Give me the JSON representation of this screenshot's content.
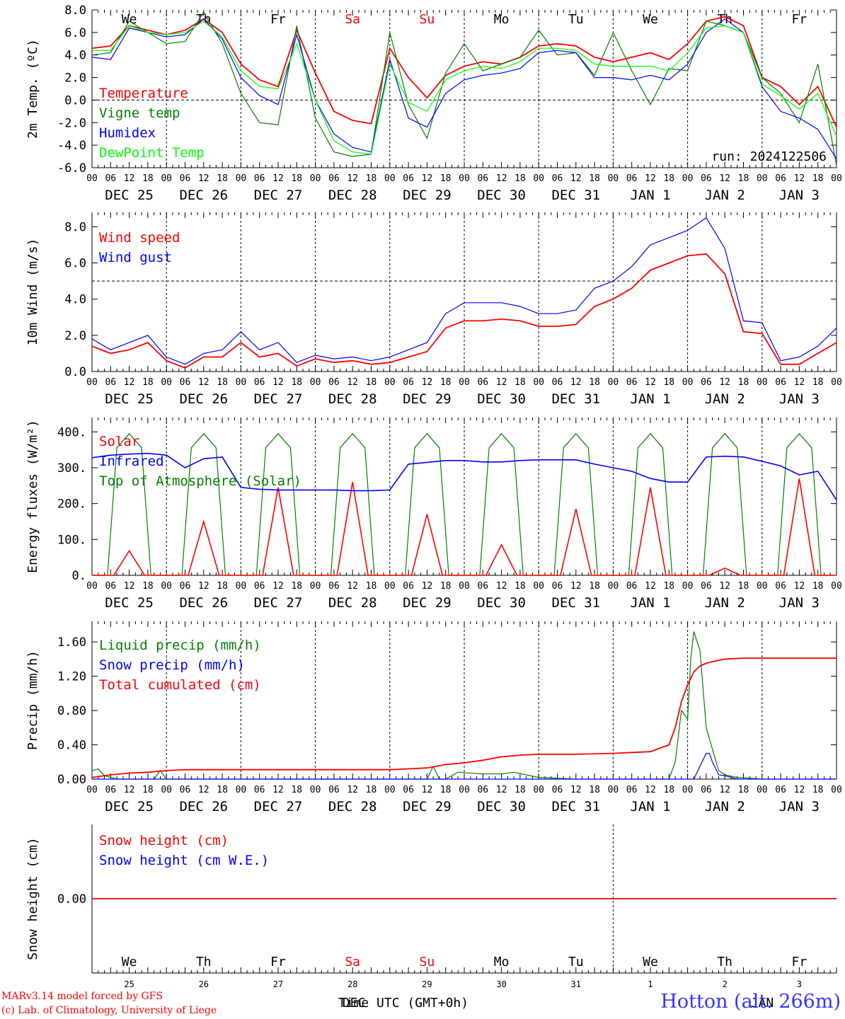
{
  "footer": {
    "model_credit": "MARv3.14 model forced by GFS",
    "lab_credit": "(c) Lab. of Climatology, University of Liege",
    "station": "Hotton (alt. 266m)",
    "x_title": "Time UTC (GMT+0h)",
    "x_title_overlay": "DEC",
    "x_title_overlay2": "JAN"
  },
  "colors": {
    "red": "#ff0000",
    "green": "#008000",
    "blue": "#0000ff",
    "lightgreen": "#00ff00",
    "axis": "#000000"
  },
  "day_abbrev": [
    "We",
    "Th",
    "Fr",
    "Sa",
    "Su",
    "Mo",
    "Tu",
    "We",
    "Th",
    "Fr"
  ],
  "day_colors": [
    "#000000",
    "#000000",
    "#000000",
    "#ff0000",
    "#ff0000",
    "#000000",
    "#000000",
    "#000000",
    "#000000",
    "#000000"
  ],
  "date_labels": [
    "DEC 25",
    "DEC 26",
    "DEC 27",
    "DEC 28",
    "DEC 29",
    "DEC 30",
    "DEC 31",
    "JAN  1",
    "JAN  2",
    "JAN  3"
  ],
  "hour_ticks": [
    "00",
    "06",
    "12",
    "18"
  ],
  "hour_end": "00",
  "day_numbers": [
    "25",
    "26",
    "27",
    "28",
    "29",
    "30",
    "31",
    "1",
    "2",
    "3"
  ],
  "chart_data": [
    {
      "type": "line",
      "ylabel": "2m Temp. (ºC)",
      "ylim": [
        -6,
        8
      ],
      "yticks": [
        "-6.0",
        "-4.0",
        "-2.0",
        "0.0",
        "2.0",
        "4.0",
        "6.0",
        "8.0"
      ],
      "ytick_values": [
        -6,
        -4,
        -2,
        0,
        2,
        4,
        6,
        8
      ],
      "ref_line": 0,
      "annotation": "run: 2024122506",
      "x_unit": "hours since DEC 25 00 UTC",
      "series": [
        {
          "name": "Temperature",
          "color": "#ff0000",
          "x": [
            0,
            6,
            12,
            18,
            24,
            30,
            36,
            42,
            48,
            54,
            60,
            66,
            72,
            78,
            84,
            90,
            96,
            102,
            108,
            114,
            120,
            126,
            132,
            138,
            144,
            150,
            156,
            162,
            168,
            174,
            180,
            186,
            192,
            198,
            204,
            210,
            216,
            222,
            228,
            234,
            240
          ],
          "y": [
            4.6,
            4.8,
            6.6,
            6.2,
            5.8,
            6.2,
            7.2,
            6.0,
            3.2,
            1.8,
            1.2,
            6.2,
            2.4,
            -1.0,
            -1.8,
            -2.1,
            4.6,
            2.0,
            0.2,
            2.2,
            3.0,
            3.4,
            3.2,
            3.8,
            4.8,
            5.0,
            4.8,
            3.8,
            3.4,
            3.8,
            4.2,
            3.6,
            5.0,
            7.0,
            7.4,
            6.6,
            2.0,
            1.2,
            -0.4,
            1.2,
            -2.4
          ]
        },
        {
          "name": "Vigne temp",
          "color": "#008000",
          "x": [
            0,
            6,
            12,
            18,
            24,
            30,
            36,
            42,
            48,
            54,
            60,
            66,
            72,
            78,
            84,
            90,
            96,
            102,
            108,
            114,
            120,
            126,
            132,
            138,
            144,
            150,
            156,
            162,
            168,
            174,
            180,
            186,
            192,
            198,
            204,
            210,
            216,
            222,
            228,
            234,
            240
          ],
          "y": [
            4.0,
            4.2,
            7.0,
            6.0,
            5.0,
            5.2,
            7.8,
            5.0,
            0.6,
            -2.0,
            -2.2,
            6.6,
            -1.6,
            -4.6,
            -5.0,
            -4.8,
            6.0,
            -0.4,
            -3.4,
            2.4,
            5.0,
            2.6,
            3.2,
            3.8,
            6.2,
            4.0,
            4.2,
            2.2,
            6.0,
            2.6,
            -0.4,
            2.8,
            2.6,
            7.0,
            6.6,
            6.0,
            2.0,
            0.6,
            -2.0,
            3.2,
            -5.8
          ]
        },
        {
          "name": "Humidex",
          "color": "#0000ff",
          "x": [
            0,
            6,
            12,
            18,
            24,
            30,
            36,
            42,
            48,
            54,
            60,
            66,
            72,
            78,
            84,
            90,
            96,
            102,
            108,
            114,
            120,
            126,
            132,
            138,
            144,
            150,
            156,
            162,
            168,
            174,
            180,
            186,
            192,
            198,
            204,
            210,
            216,
            222,
            228,
            234,
            240
          ],
          "y": [
            3.8,
            3.6,
            6.4,
            6.0,
            5.6,
            5.8,
            7.2,
            5.4,
            2.0,
            0.4,
            -0.4,
            5.8,
            0.0,
            -3.0,
            -4.2,
            -4.6,
            3.6,
            -1.6,
            -2.4,
            0.6,
            1.8,
            2.2,
            2.4,
            2.8,
            4.2,
            4.4,
            4.2,
            2.0,
            2.0,
            1.8,
            2.2,
            1.8,
            3.2,
            6.0,
            7.2,
            6.0,
            1.2,
            -1.0,
            -1.6,
            -2.6,
            -5.2
          ]
        },
        {
          "name": "DewPoint Temp",
          "color": "#00ff00",
          "x": [
            0,
            6,
            12,
            18,
            24,
            30,
            36,
            42,
            48,
            54,
            60,
            66,
            72,
            78,
            84,
            90,
            96,
            102,
            108,
            114,
            120,
            126,
            132,
            138,
            144,
            150,
            156,
            162,
            168,
            174,
            180,
            186,
            192,
            198,
            204,
            210,
            216,
            222,
            228,
            234,
            240
          ],
          "y": [
            4.4,
            4.4,
            6.6,
            6.0,
            5.8,
            6.0,
            7.0,
            5.6,
            2.6,
            1.2,
            1.0,
            5.0,
            0.0,
            -3.6,
            -4.6,
            -4.8,
            3.2,
            -0.2,
            -1.0,
            1.8,
            2.6,
            3.0,
            2.8,
            3.4,
            4.6,
            4.6,
            4.4,
            3.2,
            3.0,
            3.0,
            3.0,
            2.6,
            4.2,
            6.4,
            6.6,
            6.0,
            1.4,
            0.4,
            -0.8,
            0.6,
            -3.2
          ]
        }
      ]
    },
    {
      "type": "line",
      "ylabel": "10m Wind (m/s)",
      "ylim": [
        0,
        8.8
      ],
      "yticks": [
        "0.0",
        "2.0",
        "4.0",
        "6.0",
        "8.0"
      ],
      "ytick_values": [
        0,
        2,
        4,
        6,
        8
      ],
      "ref_line": 5,
      "x_unit": "hours since DEC 25 00 UTC",
      "series": [
        {
          "name": "Wind speed",
          "color": "#ff0000",
          "x": [
            0,
            6,
            12,
            18,
            24,
            30,
            36,
            42,
            48,
            54,
            60,
            66,
            72,
            78,
            84,
            90,
            96,
            102,
            108,
            114,
            120,
            126,
            132,
            138,
            144,
            150,
            156,
            162,
            168,
            174,
            180,
            186,
            192,
            198,
            204,
            210,
            216,
            222,
            228,
            234,
            240
          ],
          "y": [
            1.4,
            1.0,
            1.2,
            1.6,
            0.6,
            0.2,
            0.8,
            0.8,
            1.6,
            0.8,
            1.0,
            0.3,
            0.7,
            0.5,
            0.6,
            0.4,
            0.5,
            0.8,
            1.1,
            2.4,
            2.8,
            2.8,
            2.9,
            2.8,
            2.5,
            2.5,
            2.6,
            3.6,
            4.0,
            4.6,
            5.6,
            6.0,
            6.4,
            6.5,
            5.4,
            2.2,
            2.1,
            0.4,
            0.4,
            1.0,
            1.6
          ]
        },
        {
          "name": "Wind gust",
          "color": "#0000ff",
          "x": [
            0,
            6,
            12,
            18,
            24,
            30,
            36,
            42,
            48,
            54,
            60,
            66,
            72,
            78,
            84,
            90,
            96,
            102,
            108,
            114,
            120,
            126,
            132,
            138,
            144,
            150,
            156,
            162,
            168,
            174,
            180,
            186,
            192,
            198,
            204,
            210,
            216,
            222,
            228,
            234,
            240
          ],
          "y": [
            1.8,
            1.2,
            1.6,
            2.0,
            0.8,
            0.4,
            1.0,
            1.2,
            2.2,
            1.2,
            1.6,
            0.5,
            0.9,
            0.7,
            0.8,
            0.6,
            0.8,
            1.2,
            1.6,
            3.2,
            3.8,
            3.8,
            3.8,
            3.6,
            3.2,
            3.2,
            3.4,
            4.6,
            5.0,
            5.8,
            7.0,
            7.4,
            7.8,
            8.5,
            6.8,
            2.8,
            2.7,
            0.6,
            0.8,
            1.4,
            2.4
          ]
        }
      ]
    },
    {
      "type": "line",
      "ylabel": "Energy fluxes (W/m²)",
      "ylim": [
        0,
        440
      ],
      "yticks": [
        "0.",
        "100.",
        "200.",
        "300.",
        "400."
      ],
      "ytick_values": [
        0,
        100,
        200,
        300,
        400
      ],
      "x_unit": "hours since DEC 25 00 UTC",
      "daylight_hours": [
        8,
        16
      ],
      "toa_peak": 395,
      "solar_peaks": [
        68,
        150,
        245,
        260,
        170,
        85,
        185,
        245,
        20,
        270
      ],
      "series": [
        {
          "name": "Solar",
          "color": "#ff0000"
        },
        {
          "name": "Infrared",
          "color": "#0000ff",
          "x": [
            0,
            6,
            12,
            18,
            24,
            30,
            36,
            42,
            48,
            54,
            60,
            66,
            72,
            78,
            84,
            90,
            96,
            102,
            108,
            114,
            120,
            126,
            132,
            138,
            144,
            150,
            156,
            162,
            168,
            174,
            180,
            186,
            192,
            198,
            204,
            210,
            216,
            222,
            228,
            234,
            240
          ],
          "y": [
            328,
            335,
            338,
            340,
            335,
            300,
            325,
            330,
            245,
            240,
            238,
            238,
            238,
            238,
            236,
            236,
            238,
            310,
            315,
            320,
            320,
            316,
            316,
            320,
            322,
            322,
            322,
            310,
            300,
            290,
            270,
            260,
            260,
            330,
            332,
            330,
            318,
            305,
            280,
            290,
            210
          ]
        },
        {
          "name": "Top of Atmosphere (Solar)",
          "color": "#008000"
        }
      ]
    },
    {
      "type": "line",
      "ylabel": "Precip (mm/h)",
      "ylim": [
        0,
        1.84
      ],
      "yticks": [
        "0.00",
        "0.40",
        "0.80",
        "1.20",
        "1.60"
      ],
      "ytick_values": [
        0,
        0.4,
        0.8,
        1.2,
        1.6
      ],
      "x_unit": "hours since DEC 25 00 UTC",
      "series": [
        {
          "name": "Liquid precip (mm/h)",
          "color": "#008000",
          "x": [
            0,
            2,
            4,
            8,
            12,
            20,
            22,
            24,
            26,
            36,
            60,
            96,
            108,
            110,
            112,
            114,
            118,
            126,
            132,
            136,
            144,
            156,
            168,
            180,
            186,
            188,
            189,
            190,
            192,
            193,
            194,
            196,
            198,
            202,
            204,
            208,
            216,
            228,
            240
          ],
          "y": [
            0.1,
            0.12,
            0.04,
            0.0,
            0.0,
            0.0,
            0.1,
            0.0,
            0.0,
            0.0,
            0.0,
            0.0,
            0.0,
            0.15,
            0.0,
            0.0,
            0.08,
            0.06,
            0.06,
            0.08,
            0.02,
            0.0,
            0.0,
            0.0,
            0.0,
            0.2,
            0.5,
            0.8,
            0.7,
            1.4,
            1.72,
            1.5,
            0.6,
            0.1,
            0.05,
            0.02,
            0.0,
            0.0,
            0.0
          ]
        },
        {
          "name": "Snow precip (mm/h)",
          "color": "#0000ff",
          "x": [
            0,
            180,
            194,
            196,
            198,
            199,
            200,
            202,
            204,
            208,
            216,
            240
          ],
          "y": [
            0,
            0,
            0,
            0.15,
            0.3,
            0.3,
            0.2,
            0.05,
            0.04,
            0.0,
            0.0,
            0.0
          ]
        },
        {
          "name": "Total cumulated (cm)",
          "color": "#ff0000",
          "x": [
            0,
            6,
            12,
            18,
            24,
            30,
            36,
            48,
            60,
            72,
            84,
            96,
            102,
            108,
            114,
            120,
            126,
            132,
            138,
            144,
            156,
            168,
            180,
            186,
            188,
            190,
            192,
            194,
            196,
            198,
            200,
            204,
            210,
            216,
            228,
            240
          ],
          "y": [
            0.02,
            0.05,
            0.07,
            0.08,
            0.1,
            0.11,
            0.11,
            0.11,
            0.11,
            0.11,
            0.11,
            0.11,
            0.12,
            0.13,
            0.17,
            0.19,
            0.22,
            0.26,
            0.28,
            0.29,
            0.29,
            0.3,
            0.32,
            0.4,
            0.6,
            0.9,
            1.1,
            1.25,
            1.32,
            1.35,
            1.37,
            1.4,
            1.41,
            1.41,
            1.41,
            1.41
          ]
        }
      ]
    },
    {
      "type": "line",
      "ylabel": "Snow height (cm)",
      "yticks": [
        "0.00"
      ],
      "ytick_values": [
        0
      ],
      "x_unit": "hours since DEC 25 00 UTC",
      "series": [
        {
          "name": "Snow height (cm)",
          "color": "#ff0000",
          "x": [
            0,
            240
          ],
          "y": [
            0,
            0
          ]
        },
        {
          "name": "Snow height (cm W.E.)",
          "color": "#0000ff"
        }
      ]
    }
  ]
}
